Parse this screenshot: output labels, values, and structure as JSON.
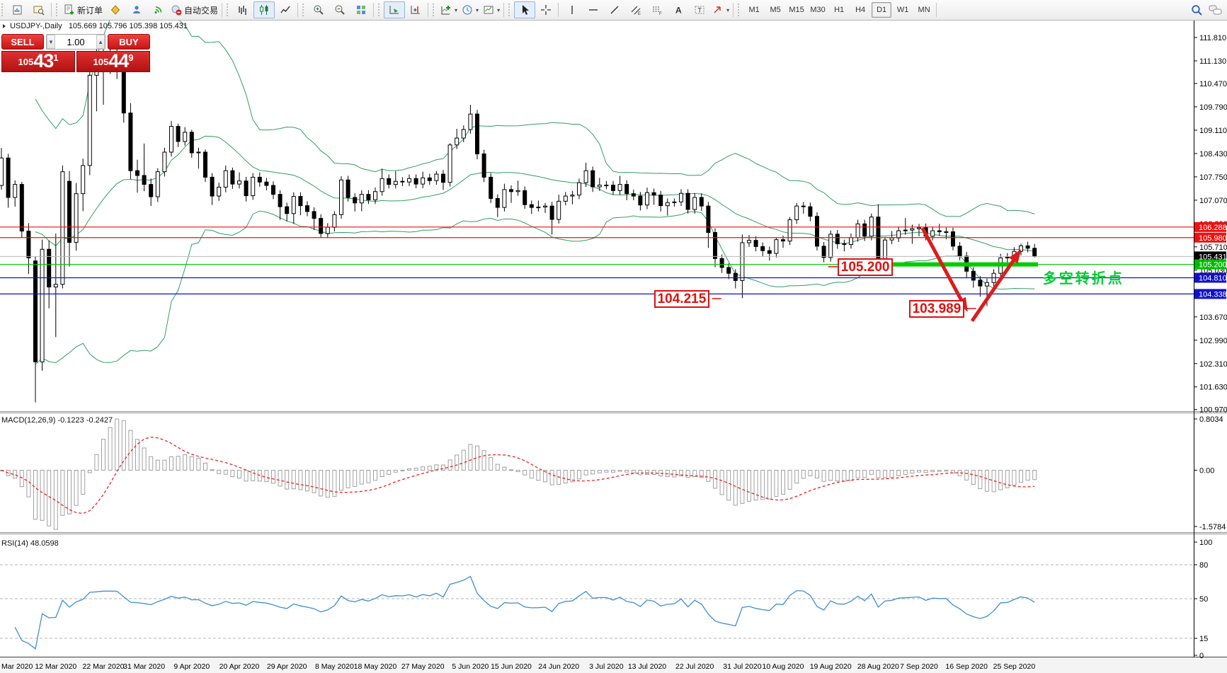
{
  "toolbar": {
    "new_order_label": "新订单",
    "autotrading_label": "自动交易",
    "timeframes": [
      "M1",
      "M5",
      "M15",
      "M30",
      "H1",
      "H4",
      "D1",
      "W1",
      "MN"
    ],
    "active_timeframe": "D1"
  },
  "one_click": {
    "sell_label": "SELL",
    "buy_label": "BUY",
    "volume": "1.00",
    "bid_prefix": "105",
    "bid_main": "43",
    "bid_sup": "1",
    "ask_prefix": "105",
    "ask_main": "44",
    "ask_sup": "9"
  },
  "header": {
    "symbol_period": "USDJPY-,Daily",
    "ohlc": "105.669 105.796 105.398 105.431"
  },
  "indicator_labels": {
    "macd": "MACD(12,26,9) -0.1223 -0.2427",
    "rsi": "RSI(14) 48.0598"
  },
  "chart_data": {
    "type": "candlestick",
    "symbol": "USDJPY-",
    "timeframe": "Daily",
    "current_ohlc": {
      "open": 105.669,
      "high": 105.796,
      "low": 105.398,
      "close": 105.431
    },
    "bid": 105.431,
    "y_ticks": [
      111.81,
      111.13,
      110.47,
      109.79,
      109.11,
      108.43,
      107.75,
      107.07,
      106.39,
      105.71,
      105.03,
      103.67,
      102.99,
      102.31,
      101.63,
      100.97
    ],
    "x_labels": [
      {
        "text": "Mar 2020",
        "bar": 0
      },
      {
        "text": "12 Mar 2020",
        "bar": 8
      },
      {
        "text": "22 Mar 2020",
        "bar": 15
      },
      {
        "text": "31 Mar 2020",
        "bar": 21
      },
      {
        "text": "9 Apr 2020",
        "bar": 28
      },
      {
        "text": "20 Apr 2020",
        "bar": 35
      },
      {
        "text": "29 Apr 2020",
        "bar": 42
      },
      {
        "text": "8 May 2020",
        "bar": 49
      },
      {
        "text": "18 May 2020",
        "bar": 55
      },
      {
        "text": "27 May 2020",
        "bar": 62
      },
      {
        "text": "5 Jun 2020",
        "bar": 69
      },
      {
        "text": "15 Jun 2020",
        "bar": 75
      },
      {
        "text": "24 Jun 2020",
        "bar": 82
      },
      {
        "text": "3 Jul 2020",
        "bar": 89
      },
      {
        "text": "13 Jul 2020",
        "bar": 95
      },
      {
        "text": "22 Jul 2020",
        "bar": 102
      },
      {
        "text": "31 Jul 2020",
        "bar": 109
      },
      {
        "text": "10 Aug 2020",
        "bar": 115
      },
      {
        "text": "19 Aug 2020",
        "bar": 122
      },
      {
        "text": "28 Aug 2020",
        "bar": 129
      },
      {
        "text": "7 Sep 2020",
        "bar": 135
      },
      {
        "text": "16 Sep 2020",
        "bar": 142
      },
      {
        "text": "25 Sep 2020",
        "bar": 149
      }
    ],
    "ohlc": [
      [
        107.5,
        108.59,
        107.38,
        108.3
      ],
      [
        108.3,
        108.42,
        106.85,
        107.15
      ],
      [
        107.15,
        107.65,
        106.88,
        107.53
      ],
      [
        107.53,
        107.6,
        105.97,
        106.17
      ],
      [
        106.17,
        106.4,
        104.92,
        105.39
      ],
      [
        105.3,
        105.42,
        101.18,
        102.36
      ],
      [
        102.36,
        105.92,
        102.1,
        105.64
      ],
      [
        105.64,
        105.9,
        103.92,
        104.54
      ],
      [
        104.54,
        106.1,
        103.08,
        104.62
      ],
      [
        104.62,
        108.08,
        104.5,
        107.9
      ],
      [
        107.62,
        107.92,
        105.14,
        105.84
      ],
      [
        105.84,
        107.57,
        105.6,
        107.26
      ],
      [
        107.26,
        108.28,
        106.75,
        108.08
      ],
      [
        108.08,
        111.0,
        107.8,
        110.71
      ],
      [
        110.71,
        111.49,
        109.66,
        110.93
      ],
      [
        110.93,
        111.59,
        109.85,
        111.22
      ],
      [
        111.22,
        111.71,
        110.75,
        111.2
      ],
      [
        111.2,
        111.55,
        110.6,
        111.19
      ],
      [
        111.19,
        111.35,
        109.33,
        109.61
      ],
      [
        109.61,
        109.9,
        107.69,
        107.93
      ],
      [
        107.93,
        108.25,
        107.29,
        107.79
      ],
      [
        107.79,
        108.72,
        107.33,
        107.53
      ],
      [
        107.53,
        107.7,
        106.9,
        107.17
      ],
      [
        107.17,
        108.0,
        107.02,
        107.9
      ],
      [
        107.9,
        108.6,
        107.76,
        108.47
      ],
      [
        108.47,
        109.38,
        108.34,
        109.22
      ],
      [
        109.22,
        109.3,
        108.62,
        108.78
      ],
      [
        108.78,
        109.2,
        108.66,
        109.05
      ],
      [
        109.05,
        109.12,
        108.31,
        108.45
      ],
      [
        108.45,
        108.6,
        107.99,
        108.47
      ],
      [
        108.47,
        108.55,
        107.6,
        107.74
      ],
      [
        107.74,
        107.86,
        106.93,
        107.19
      ],
      [
        107.19,
        107.58,
        107.05,
        107.45
      ],
      [
        107.45,
        108.08,
        107.3,
        107.93
      ],
      [
        107.93,
        108.02,
        107.4,
        107.54
      ],
      [
        107.54,
        107.88,
        107.41,
        107.63
      ],
      [
        107.63,
        107.75,
        107.03,
        107.2
      ],
      [
        107.2,
        107.86,
        107.08,
        107.74
      ],
      [
        107.74,
        107.88,
        107.46,
        107.6
      ],
      [
        107.6,
        107.72,
        107.36,
        107.5
      ],
      [
        107.5,
        107.62,
        107.1,
        107.24
      ],
      [
        107.24,
        107.36,
        106.5,
        106.88
      ],
      [
        106.88,
        107.0,
        106.45,
        106.68
      ],
      [
        106.68,
        107.3,
        106.38,
        107.18
      ],
      [
        107.18,
        107.3,
        106.63,
        106.91
      ],
      [
        106.91,
        107.04,
        106.6,
        106.74
      ],
      [
        106.74,
        106.86,
        106.2,
        106.54
      ],
      [
        106.54,
        106.66,
        105.98,
        106.1
      ],
      [
        106.1,
        106.4,
        105.99,
        106.28
      ],
      [
        106.28,
        106.75,
        106.16,
        106.65
      ],
      [
        106.65,
        107.77,
        106.53,
        107.66
      ],
      [
        107.66,
        107.78,
        107.03,
        107.15
      ],
      [
        107.15,
        107.27,
        106.74,
        106.99
      ],
      [
        106.99,
        107.36,
        106.75,
        107.24
      ],
      [
        107.24,
        107.36,
        106.96,
        107.08
      ],
      [
        107.08,
        107.44,
        106.96,
        107.32
      ],
      [
        107.32,
        107.99,
        107.2,
        107.7
      ],
      [
        107.7,
        107.82,
        107.41,
        107.53
      ],
      [
        107.53,
        107.92,
        107.41,
        107.62
      ],
      [
        107.62,
        107.74,
        107.48,
        107.6
      ],
      [
        107.6,
        107.82,
        107.48,
        107.7
      ],
      [
        107.7,
        107.82,
        107.42,
        107.54
      ],
      [
        107.54,
        107.9,
        107.42,
        107.72
      ],
      [
        107.72,
        107.84,
        107.52,
        107.64
      ],
      [
        107.64,
        107.92,
        107.52,
        107.83
      ],
      [
        107.83,
        107.95,
        107.37,
        107.59
      ],
      [
        107.59,
        108.73,
        107.47,
        108.68
      ],
      [
        108.68,
        109.15,
        108.56,
        108.88
      ],
      [
        108.88,
        109.25,
        108.76,
        109.13
      ],
      [
        109.13,
        109.85,
        109.01,
        109.58
      ],
      [
        109.58,
        109.7,
        108.26,
        108.42
      ],
      [
        108.42,
        108.54,
        107.6,
        107.74
      ],
      [
        107.74,
        107.86,
        106.99,
        107.12
      ],
      [
        107.12,
        107.24,
        106.58,
        106.86
      ],
      [
        106.86,
        107.55,
        106.74,
        107.38
      ],
      [
        107.38,
        107.5,
        106.99,
        107.32
      ],
      [
        107.32,
        107.64,
        107.2,
        107.35
      ],
      [
        107.35,
        107.47,
        106.82,
        106.94
      ],
      [
        106.94,
        107.06,
        106.67,
        106.86
      ],
      [
        106.86,
        107.06,
        106.74,
        106.87
      ],
      [
        106.87,
        106.99,
        106.7,
        106.9
      ],
      [
        106.9,
        107.02,
        106.07,
        106.51
      ],
      [
        106.51,
        107.23,
        106.39,
        107.04
      ],
      [
        107.04,
        107.31,
        106.92,
        107.19
      ],
      [
        107.19,
        107.34,
        106.95,
        107.22
      ],
      [
        107.22,
        107.7,
        107.1,
        107.58
      ],
      [
        107.58,
        108.16,
        107.46,
        107.93
      ],
      [
        107.93,
        108.05,
        107.31,
        107.46
      ],
      [
        107.46,
        107.72,
        107.34,
        107.51
      ],
      [
        107.51,
        107.63,
        107.39,
        107.51
      ],
      [
        107.51,
        107.63,
        107.22,
        107.35
      ],
      [
        107.35,
        107.78,
        107.23,
        107.53
      ],
      [
        107.53,
        107.65,
        107.07,
        107.26
      ],
      [
        107.26,
        107.38,
        107.07,
        107.19
      ],
      [
        107.19,
        107.31,
        106.77,
        106.93
      ],
      [
        106.93,
        107.44,
        106.81,
        107.29
      ],
      [
        107.29,
        107.41,
        106.94,
        107.22
      ],
      [
        107.22,
        107.34,
        106.74,
        106.91
      ],
      [
        106.91,
        107.12,
        106.62,
        107.0
      ],
      [
        107.0,
        107.12,
        106.88,
        107.02
      ],
      [
        107.02,
        107.39,
        106.9,
        107.27
      ],
      [
        107.27,
        107.39,
        106.68,
        106.8
      ],
      [
        106.8,
        107.28,
        106.68,
        107.15
      ],
      [
        107.15,
        107.27,
        106.76,
        106.9
      ],
      [
        106.9,
        107.02,
        105.68,
        106.13
      ],
      [
        106.13,
        106.25,
        105.12,
        105.37
      ],
      [
        105.37,
        105.49,
        104.95,
        105.11
      ],
      [
        105.11,
        105.23,
        104.77,
        104.94
      ],
      [
        104.94,
        105.06,
        104.5,
        104.73
      ],
      [
        104.73,
        106.07,
        104.215,
        105.83
      ],
      [
        105.83,
        106.05,
        105.71,
        105.9
      ],
      [
        105.9,
        106.02,
        105.58,
        105.72
      ],
      [
        105.72,
        105.84,
        105.44,
        105.6
      ],
      [
        105.6,
        105.72,
        105.31,
        105.52
      ],
      [
        105.52,
        105.99,
        105.4,
        105.92
      ],
      [
        105.92,
        106.04,
        105.68,
        105.88
      ],
      [
        105.88,
        106.58,
        105.76,
        106.5
      ],
      [
        106.5,
        106.99,
        106.38,
        106.9
      ],
      [
        106.9,
        107.02,
        106.68,
        106.88
      ],
      [
        106.88,
        107.0,
        106.46,
        106.6
      ],
      [
        106.6,
        106.72,
        105.6,
        105.73
      ],
      [
        105.73,
        105.85,
        105.26,
        105.4
      ],
      [
        105.4,
        106.19,
        105.28,
        106.08
      ],
      [
        106.08,
        106.2,
        105.66,
        105.8
      ],
      [
        105.8,
        105.92,
        105.58,
        105.78
      ],
      [
        105.78,
        106.1,
        105.66,
        105.98
      ],
      [
        105.98,
        106.5,
        105.86,
        106.38
      ],
      [
        106.38,
        106.5,
        105.88,
        106.02
      ],
      [
        106.02,
        106.68,
        105.9,
        106.58
      ],
      [
        106.58,
        106.95,
        105.29,
        105.37
      ],
      [
        105.37,
        105.98,
        105.25,
        105.91
      ],
      [
        105.91,
        106.17,
        105.79,
        105.97
      ],
      [
        105.97,
        106.3,
        105.85,
        106.18
      ],
      [
        106.18,
        106.55,
        106.06,
        106.2
      ],
      [
        106.2,
        106.36,
        105.8,
        106.24
      ],
      [
        106.24,
        106.38,
        106.02,
        106.27
      ],
      [
        106.27,
        106.39,
        105.9,
        106.02
      ],
      [
        106.02,
        106.3,
        105.9,
        106.18
      ],
      [
        106.18,
        106.38,
        106.03,
        106.15
      ],
      [
        106.15,
        106.27,
        105.93,
        106.15
      ],
      [
        106.15,
        106.27,
        105.61,
        105.73
      ],
      [
        105.73,
        105.85,
        105.32,
        105.44
      ],
      [
        105.44,
        105.56,
        104.8,
        105.0
      ],
      [
        105.0,
        105.12,
        104.52,
        104.74
      ],
      [
        104.74,
        104.86,
        104.26,
        104.57
      ],
      [
        104.57,
        104.79,
        103.989,
        104.67
      ],
      [
        104.67,
        105.06,
        104.55,
        104.94
      ],
      [
        104.94,
        105.51,
        104.82,
        105.39
      ],
      [
        105.39,
        105.53,
        105.2,
        105.41
      ],
      [
        105.41,
        105.7,
        105.29,
        105.58
      ],
      [
        105.58,
        105.8,
        105.46,
        105.74
      ],
      [
        105.74,
        105.86,
        105.55,
        105.67
      ],
      [
        105.669,
        105.796,
        105.398,
        105.431
      ]
    ],
    "bollinger": {
      "period": 20,
      "deviation": 2,
      "color": "#2f9e68"
    },
    "hlines": [
      {
        "price": 106.288,
        "color": "#ee1111"
      },
      {
        "price": 105.98,
        "color": "#ee1111"
      },
      {
        "price": 105.2,
        "color": "#00c800"
      },
      {
        "price": 104.81,
        "color": "#1111cc"
      },
      {
        "price": 104.338,
        "color": "#1111cc"
      }
    ],
    "bid_line": {
      "price": 105.431,
      "line_color": "#b8b8b8",
      "badge_color": "#000000"
    },
    "badges": [
      {
        "price": 106.288,
        "bg": "#ee1111"
      },
      {
        "price": 105.98,
        "bg": "#ee1111"
      },
      {
        "price": 105.431,
        "bg": "#000000"
      },
      {
        "price": 105.2,
        "bg": "#00bb00"
      },
      {
        "price": 104.81,
        "bg": "#1111cc"
      },
      {
        "price": 104.338,
        "bg": "#1111cc"
      }
    ],
    "thick_segment": {
      "price": 105.2,
      "from_bar": 130.5,
      "to_bar": 152.5,
      "color": "#00cc00"
    },
    "arrows": [
      {
        "from_bar": 135.5,
        "from_price": 106.26,
        "to_bar": 141.8,
        "to_price": 103.95,
        "color": "#dd1c1c"
      },
      {
        "from_bar": 142.8,
        "from_price": 103.55,
        "to_bar": 149.6,
        "to_price": 105.52,
        "color": "#dd1c1c"
      }
    ],
    "price_labels": [
      {
        "text": "105.200",
        "bar": 123,
        "price": 105.38,
        "tick": "left"
      },
      {
        "text": "104.215",
        "bar": 96,
        "price": 104.45,
        "tick": "right"
      },
      {
        "text": "103.989",
        "bar": 133.5,
        "price": 104.16,
        "tick": "right"
      }
    ],
    "note": {
      "text": "多空转折点",
      "bar": 153.2,
      "price": 105.12,
      "color": "#00cc33"
    },
    "macd": {
      "fast": 12,
      "slow": 26,
      "signal": 9,
      "value": -0.1223,
      "signal_value": -0.2427,
      "axis_top": "0.8034",
      "axis_zero": "0.00",
      "axis_bottom": "-1.5784",
      "hist_color": "#a0a0a0",
      "signal_color": "#ee2222"
    },
    "rsi": {
      "period": 14,
      "value": 48.0598,
      "color": "#3e8fd0",
      "axis": [
        {
          "v": 100,
          "t": "100"
        },
        {
          "v": 80,
          "t": "80",
          "dashed": true
        },
        {
          "v": 50,
          "t": "50",
          "dashed": true
        },
        {
          "v": 15,
          "t": "15",
          "dashed": true
        },
        {
          "v": 0,
          "t": "0"
        }
      ]
    }
  }
}
